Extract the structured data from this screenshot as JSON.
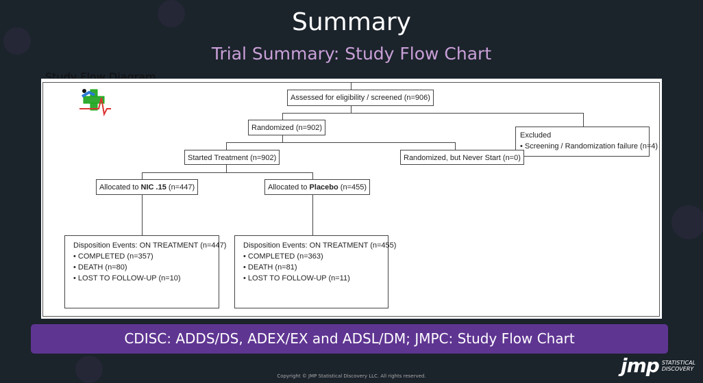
{
  "header": {
    "title": "Summary",
    "subtitle": "Trial Summary: Study Flow Chart"
  },
  "diagram": {
    "heading": "Study Flow Diagram",
    "assessed": "Assessed for eligibility / screened (n=906)",
    "randomized": "Randomized (n=902)",
    "excluded": {
      "title": "Excluded",
      "item": "• Screening / Randomization failure  (n=4)"
    },
    "started": "Started Treatment (n=902)",
    "never_start": "Randomized, but Never Start (n=0)",
    "arm1": {
      "prefix": "Allocated to ",
      "name": "NIC .15",
      "count": " (n=447)",
      "disposition": [
        "Disposition Events: ON TREATMENT (n=447)",
        "• COMPLETED (n=357)",
        "• DEATH (n=80)",
        "• LOST TO FOLLOW-UP (n=10)"
      ]
    },
    "arm2": {
      "prefix": "Allocated to ",
      "name": "Placebo",
      "count": " (n=455)",
      "disposition": [
        "Disposition Events: ON TREATMENT (n=455)",
        "• COMPLETED (n=363)",
        "• DEATH (n=81)",
        "• LOST TO FOLLOW-UP (n=11)"
      ]
    }
  },
  "banner": "CDISC: ADDS/DS, ADEX/EX and ADSL/DM; JMPC: Study Flow Chart",
  "footer": {
    "copyright": "Copyright © JMP Statistical Discovery LLC. All rights reserved.",
    "logo": "jmp",
    "logo_sub1": "STATISTICAL",
    "logo_sub2": "DISCOVERY"
  },
  "colors": {
    "background": "#1b232b",
    "banner": "#5f3592",
    "subtitle": "#c9a0d8"
  }
}
